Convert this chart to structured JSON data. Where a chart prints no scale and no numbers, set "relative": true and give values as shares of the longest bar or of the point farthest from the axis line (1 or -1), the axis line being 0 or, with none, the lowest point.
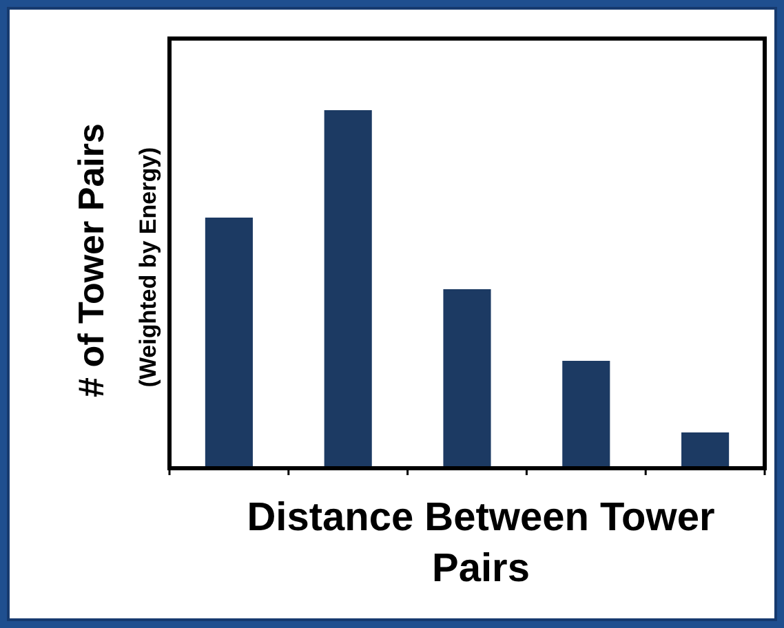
{
  "chart_data": {
    "type": "bar",
    "relative": true,
    "xlabel": "Distance Between Tower Pairs",
    "ylabel": "# of Tower Pairs\n(Weighted by Energy)",
    "categories": [
      null,
      null,
      null,
      null,
      null
    ],
    "values": [
      0.7,
      1,
      0.5,
      0.3,
      0.1
    ],
    "color": "#1c3a63"
  }
}
